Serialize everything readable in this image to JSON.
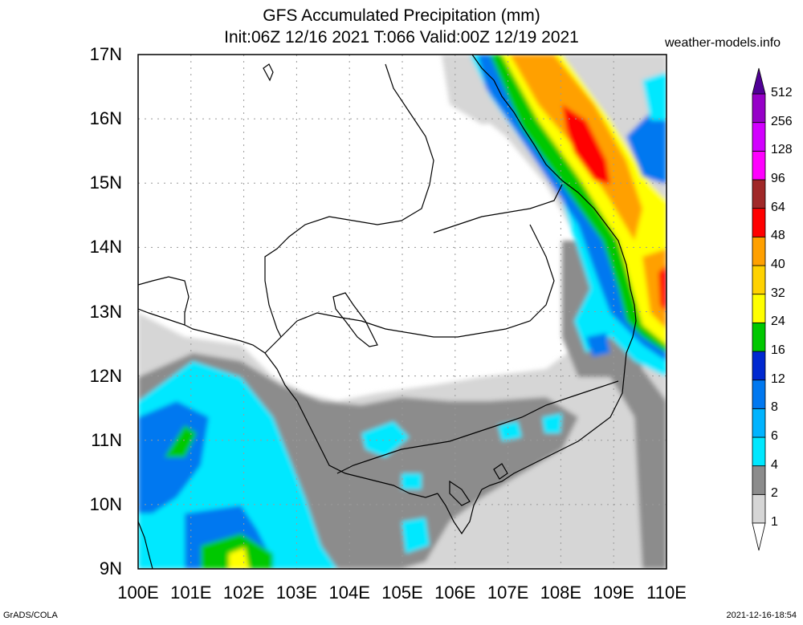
{
  "title_line1": "GFS Accumulated Precipitation (mm)",
  "title_line2": "Init:06Z 12/16 2021 T:066 Valid:00Z 12/19 2021",
  "site": "weather-models.info",
  "lat_labels": [
    "17N",
    "16N",
    "15N",
    "14N",
    "13N",
    "12N",
    "11N",
    "10N",
    "9N"
  ],
  "lon_labels": [
    "100E",
    "101E",
    "102E",
    "103E",
    "104E",
    "105E",
    "106E",
    "107E",
    "108E",
    "109E",
    "110E"
  ],
  "map_extent": {
    "lon": [
      100,
      110
    ],
    "lat": [
      9,
      17
    ]
  },
  "legend": {
    "levels": [
      "1",
      "2",
      "4",
      "6",
      "8",
      "12",
      "16",
      "24",
      "32",
      "40",
      "48",
      "64",
      "96",
      "128",
      "256",
      "512"
    ],
    "colors": [
      "#d6d6d6",
      "#8c8c8c",
      "#00e8ff",
      "#00b4ff",
      "#0078f0",
      "#0028d0",
      "#00c800",
      "#ffff00",
      "#ffd200",
      "#ffa000",
      "#ff0000",
      "#a02828",
      "#ff00ff",
      "#d200ff",
      "#9600c8",
      "#500096"
    ]
  },
  "footer_left": "GrADS/COLA",
  "footer_right": "2021-12-16-18:54"
}
